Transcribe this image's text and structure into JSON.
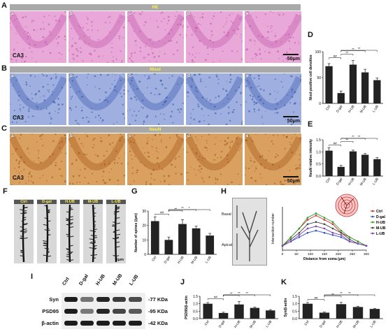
{
  "panels": {
    "A": {
      "label": "A",
      "stain": "HE",
      "region": "CA3",
      "scale": "50μm",
      "subs": [
        "a",
        "b",
        "c",
        "d",
        "e"
      ],
      "color": "#e8a8d8"
    },
    "B": {
      "label": "B",
      "stain": "Nissl",
      "region": "CA3",
      "scale": "50μm",
      "subs": [
        "a",
        "b",
        "c",
        "d",
        "e"
      ],
      "color": "#9fb0e0"
    },
    "C": {
      "label": "C",
      "stain": "NeuN",
      "region": "CA3",
      "scale": "50μm",
      "subs": [
        "a",
        "b",
        "c",
        "d",
        "e"
      ],
      "color": "#d9a060"
    },
    "F": {
      "label": "F",
      "groups": [
        "Ctrl",
        "D-gal",
        "H-UB",
        "M-UB",
        "L-UB"
      ],
      "scale": "5μm"
    },
    "H": {
      "label": "H",
      "basal_label": "Basal",
      "apical_label": "Apical"
    },
    "I": {
      "label": "I",
      "proteins": [
        {
          "name": "Syn",
          "kda": "-77 KDa"
        },
        {
          "name": "PSD95",
          "kda": "-95 KDa"
        },
        {
          "name": "β-actin",
          "kda": "-42 KDa"
        }
      ]
    },
    "D": {
      "label": "D"
    },
    "E": {
      "label": "E"
    },
    "G": {
      "label": "G"
    },
    "J": {
      "label": "J"
    },
    "K": {
      "label": "K"
    }
  },
  "chart_data": [
    {
      "id": "D",
      "type": "bar",
      "categories": [
        "Ctrl",
        "D-gal",
        "H-UB",
        "M-UB",
        "L-UB"
      ],
      "values": [
        72,
        20,
        75,
        60,
        45
      ],
      "errors": [
        5,
        4,
        8,
        6,
        4
      ],
      "ylabel": "Nissl-positive cell densities",
      "ylim": [
        0,
        100
      ],
      "yticks": [
        0,
        50,
        100
      ],
      "sig": [
        {
          "from": 0,
          "to": 1,
          "text": "##"
        },
        {
          "from": 1,
          "to": 2,
          "text": "**"
        },
        {
          "from": 1,
          "to": 3,
          "text": "**"
        },
        {
          "from": 1,
          "to": 4,
          "text": "**"
        }
      ]
    },
    {
      "id": "E",
      "type": "bar",
      "categories": [
        "Ctrl",
        "D-gal",
        "H-UB",
        "M-UB",
        "L-UB"
      ],
      "values": [
        1.05,
        0.38,
        1.02,
        0.88,
        0.7
      ],
      "errors": [
        0.12,
        0.06,
        0.05,
        0.05,
        0.06
      ],
      "ylabel": "NeuN relative intensity",
      "ylim": [
        0,
        1.5
      ],
      "yticks": [
        0.0,
        0.5,
        1.0,
        1.5
      ],
      "sig": [
        {
          "from": 0,
          "to": 1,
          "text": "##"
        },
        {
          "from": 1,
          "to": 2,
          "text": "**"
        },
        {
          "from": 1,
          "to": 3,
          "text": "**"
        },
        {
          "from": 1,
          "to": 4,
          "text": "**"
        }
      ]
    },
    {
      "id": "G",
      "type": "bar",
      "categories": [
        "Ctrl",
        "D-gal",
        "H-UB",
        "M-UB",
        "L-UB"
      ],
      "values": [
        23,
        10,
        21,
        18,
        13
      ],
      "errors": [
        3,
        2,
        3,
        1.5,
        1.5
      ],
      "ylabel": "Number of spines (/μm)",
      "ylim": [
        0,
        30
      ],
      "yticks": [
        0,
        10,
        20,
        30
      ],
      "sig": [
        {
          "from": 0,
          "to": 1,
          "text": "##"
        },
        {
          "from": 1,
          "to": 2,
          "text": "**"
        },
        {
          "from": 1,
          "to": 3,
          "text": "**"
        },
        {
          "from": 1,
          "to": 4,
          "text": "*"
        }
      ]
    },
    {
      "id": "H",
      "type": "line",
      "x": [
        0,
        30,
        60,
        90,
        120,
        150,
        180,
        210,
        240,
        270,
        300
      ],
      "xlabel": "Distance from soma (μm)",
      "ylabel": "Intersection number",
      "xlim": [
        0,
        300
      ],
      "xticks": [
        0,
        50,
        100,
        150,
        200,
        250,
        300
      ],
      "ylim": [
        0,
        10
      ],
      "series": [
        {
          "name": "Ctrl",
          "color": "#d0312d",
          "values": [
            1,
            3,
            5,
            7,
            8,
            7,
            6,
            4,
            3,
            2,
            1
          ]
        },
        {
          "name": "D-gal",
          "color": "#2f4fd0",
          "values": [
            1,
            2,
            3,
            4,
            4.5,
            4,
            3.5,
            3,
            2,
            1.5,
            1
          ]
        },
        {
          "name": "H-UB",
          "color": "#2ca02c",
          "values": [
            1,
            3,
            5,
            7.5,
            8.5,
            7.5,
            6.5,
            4.5,
            3,
            2,
            1
          ]
        },
        {
          "name": "M-UB",
          "color": "#444444",
          "values": [
            1,
            2.5,
            4,
            6,
            6.5,
            6,
            5,
            4,
            2.5,
            1.5,
            1
          ]
        },
        {
          "name": "L-UB",
          "color": "#7a3fb0",
          "values": [
            1,
            2,
            3.5,
            5,
            5.5,
            5,
            4,
            3.5,
            2,
            1.5,
            1
          ]
        }
      ]
    },
    {
      "id": "J",
      "type": "bar",
      "categories": [
        "Ctrl",
        "D-gal",
        "H-UB",
        "M-UB",
        "L-UB"
      ],
      "values": [
        1.0,
        0.38,
        0.95,
        0.72,
        0.55
      ],
      "errors": [
        0.08,
        0.05,
        0.2,
        0.05,
        0.05
      ],
      "ylabel": "PSD95/β-actin",
      "ylim": [
        0,
        1.5
      ],
      "yticks": [
        0.0,
        0.5,
        1.0,
        1.5
      ],
      "sig": [
        {
          "from": 0,
          "to": 1,
          "text": "##"
        },
        {
          "from": 1,
          "to": 2,
          "text": "**"
        },
        {
          "from": 1,
          "to": 3,
          "text": "**"
        },
        {
          "from": 1,
          "to": 4,
          "text": "**"
        }
      ]
    },
    {
      "id": "K",
      "type": "bar",
      "categories": [
        "Ctrl",
        "D-gal",
        "H-UB",
        "M-UB",
        "L-UB"
      ],
      "values": [
        1.0,
        0.4,
        0.97,
        0.78,
        0.65
      ],
      "errors": [
        0.08,
        0.04,
        0.12,
        0.05,
        0.04
      ],
      "ylabel": "Syn/β-actin",
      "ylim": [
        0,
        1.5
      ],
      "yticks": [
        0.0,
        0.5,
        1.0,
        1.5
      ],
      "sig": [
        {
          "from": 0,
          "to": 1,
          "text": "##"
        },
        {
          "from": 1,
          "to": 2,
          "text": "**"
        },
        {
          "from": 1,
          "to": 3,
          "text": "**"
        },
        {
          "from": 1,
          "to": 4,
          "text": "**"
        }
      ]
    }
  ]
}
